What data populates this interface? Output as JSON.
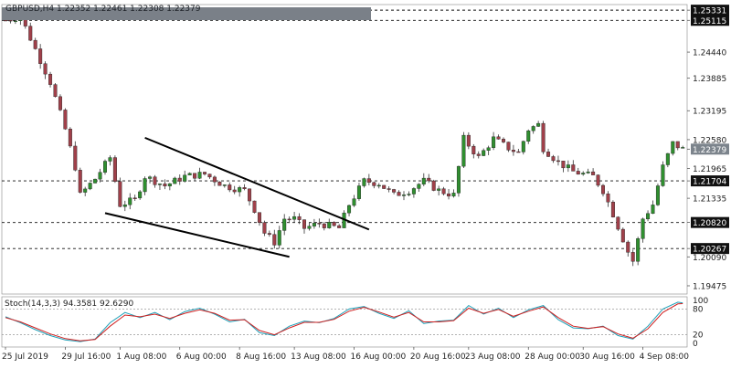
{
  "header": {
    "symbol_info": "GBPUSD,H4 1.22352 1.22461 1.22308 1.22379"
  },
  "indicator": {
    "label": "Stoch(14,3,3) 94.3581 92.6290",
    "levels": [
      "100",
      "80",
      "20",
      "0"
    ]
  },
  "colors": {
    "bull": "#2f8f2f",
    "bear": "#a0404a",
    "wick": "#333333",
    "stoch_main": "#1fa0b8",
    "stoch_signal": "#d02020",
    "header_bar": "#7a8088",
    "price_badge": "#111111"
  },
  "price_axis_labels": [
    "1.25331",
    "1.25115",
    "1.24440",
    "1.23885",
    "1.23195",
    "1.22580",
    "1.22379",
    "1.21965",
    "1.21704",
    "1.21335",
    "1.20820",
    "1.20267",
    "1.20090",
    "1.19475"
  ],
  "highlighted_levels": [
    "1.25331",
    "1.25115",
    "1.21704",
    "1.20820",
    "1.20267"
  ],
  "current_price": "1.22379",
  "time_axis_labels": [
    "25 Jul 2019",
    "29 Jul 16:00",
    "1 Aug 08:00",
    "6 Aug 00:00",
    "8 Aug 16:00",
    "13 Aug 08:00",
    "16 Aug 00:00",
    "20 Aug 16:00",
    "23 Aug 08:00",
    "28 Aug 00:00",
    "30 Aug 16:00",
    "4 Sep 08:00"
  ],
  "chart_data": {
    "type": "candlestick",
    "symbol": "GBPUSD",
    "timeframe": "H4",
    "ylim": [
      1.193,
      1.2545
    ],
    "horizontal_levels": [
      1.25331,
      1.25115,
      1.21704,
      1.2082,
      1.20267
    ],
    "trendlines": [
      {
        "name": "upper",
        "from": {
          "bar": 28,
          "price": 1.2262
        },
        "to": {
          "bar": 73,
          "price": 1.2067
        }
      },
      {
        "name": "lower",
        "from": {
          "bar": 20,
          "price": 1.2102
        },
        "to": {
          "bar": 57,
          "price": 1.2009
        }
      }
    ],
    "anchors": [
      [
        0,
        1.2512
      ],
      [
        3,
        1.252
      ],
      [
        6,
        1.245
      ],
      [
        9,
        1.238
      ],
      [
        12,
        1.228
      ],
      [
        14,
        1.22
      ],
      [
        15,
        1.214
      ],
      [
        18,
        1.2175
      ],
      [
        21,
        1.222
      ],
      [
        23,
        1.212
      ],
      [
        26,
        1.213
      ],
      [
        28,
        1.218
      ],
      [
        32,
        1.216
      ],
      [
        36,
        1.218
      ],
      [
        40,
        1.2185
      ],
      [
        44,
        1.216
      ],
      [
        48,
        1.215
      ],
      [
        50,
        1.211
      ],
      [
        52,
        1.206
      ],
      [
        54,
        1.204
      ],
      [
        56,
        1.209
      ],
      [
        58,
        1.209
      ],
      [
        60,
        1.207
      ],
      [
        63,
        1.208
      ],
      [
        67,
        1.207
      ],
      [
        69,
        1.212
      ],
      [
        72,
        1.217
      ],
      [
        75,
        1.2165
      ],
      [
        78,
        1.214
      ],
      [
        81,
        1.215
      ],
      [
        84,
        1.217
      ],
      [
        87,
        1.215
      ],
      [
        90,
        1.214
      ],
      [
        92,
        1.226
      ],
      [
        95,
        1.222
      ],
      [
        98,
        1.226
      ],
      [
        101,
        1.224
      ],
      [
        103,
        1.223
      ],
      [
        105,
        1.228
      ],
      [
        107,
        1.229
      ],
      [
        108,
        1.224
      ],
      [
        111,
        1.221
      ],
      [
        114,
        1.219
      ],
      [
        118,
        1.218
      ],
      [
        120,
        1.215
      ],
      [
        122,
        1.21
      ],
      [
        125,
        1.202
      ],
      [
        126,
        1.2
      ],
      [
        128,
        1.209
      ],
      [
        130,
        1.212
      ],
      [
        132,
        1.22
      ],
      [
        134,
        1.225
      ],
      [
        136,
        1.2238
      ]
    ],
    "stochastic": {
      "main": [
        [
          0,
          62
        ],
        [
          3,
          48
        ],
        [
          6,
          32
        ],
        [
          9,
          18
        ],
        [
          12,
          8
        ],
        [
          15,
          4
        ],
        [
          18,
          10
        ],
        [
          21,
          48
        ],
        [
          24,
          72
        ],
        [
          27,
          60
        ],
        [
          30,
          72
        ],
        [
          33,
          55
        ],
        [
          36,
          74
        ],
        [
          39,
          82
        ],
        [
          42,
          68
        ],
        [
          45,
          50
        ],
        [
          48,
          56
        ],
        [
          51,
          25
        ],
        [
          54,
          18
        ],
        [
          57,
          40
        ],
        [
          60,
          52
        ],
        [
          63,
          48
        ],
        [
          66,
          58
        ],
        [
          69,
          80
        ],
        [
          72,
          86
        ],
        [
          75,
          70
        ],
        [
          78,
          58
        ],
        [
          81,
          76
        ],
        [
          84,
          46
        ],
        [
          87,
          52
        ],
        [
          90,
          54
        ],
        [
          93,
          88
        ],
        [
          96,
          68
        ],
        [
          99,
          82
        ],
        [
          102,
          60
        ],
        [
          105,
          78
        ],
        [
          108,
          88
        ],
        [
          111,
          55
        ],
        [
          114,
          36
        ],
        [
          117,
          34
        ],
        [
          120,
          40
        ],
        [
          123,
          18
        ],
        [
          126,
          10
        ],
        [
          129,
          40
        ],
        [
          132,
          80
        ],
        [
          135,
          96
        ],
        [
          136,
          94.36
        ]
      ],
      "signal": [
        [
          0,
          60
        ],
        [
          3,
          50
        ],
        [
          6,
          36
        ],
        [
          9,
          22
        ],
        [
          12,
          11
        ],
        [
          15,
          6
        ],
        [
          18,
          9
        ],
        [
          21,
          40
        ],
        [
          24,
          66
        ],
        [
          27,
          62
        ],
        [
          30,
          68
        ],
        [
          33,
          58
        ],
        [
          36,
          70
        ],
        [
          39,
          78
        ],
        [
          42,
          70
        ],
        [
          45,
          54
        ],
        [
          48,
          55
        ],
        [
          51,
          30
        ],
        [
          54,
          20
        ],
        [
          57,
          36
        ],
        [
          60,
          49
        ],
        [
          63,
          49
        ],
        [
          66,
          56
        ],
        [
          69,
          75
        ],
        [
          72,
          84
        ],
        [
          75,
          73
        ],
        [
          78,
          61
        ],
        [
          81,
          72
        ],
        [
          84,
          50
        ],
        [
          87,
          50
        ],
        [
          90,
          53
        ],
        [
          93,
          82
        ],
        [
          96,
          70
        ],
        [
          99,
          79
        ],
        [
          102,
          63
        ],
        [
          105,
          75
        ],
        [
          108,
          85
        ],
        [
          111,
          60
        ],
        [
          114,
          40
        ],
        [
          117,
          35
        ],
        [
          120,
          39
        ],
        [
          123,
          22
        ],
        [
          126,
          12
        ],
        [
          129,
          34
        ],
        [
          132,
          72
        ],
        [
          135,
          92
        ],
        [
          136,
          92.63
        ]
      ]
    }
  }
}
